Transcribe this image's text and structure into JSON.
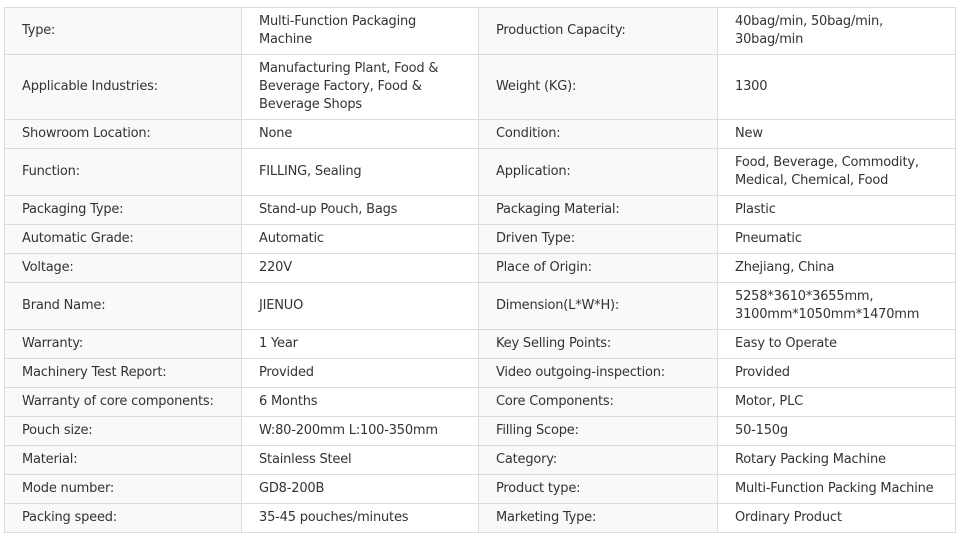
{
  "specs": {
    "rows": [
      {
        "k1": "Type:",
        "v1": "Multi-Function Packaging Machine",
        "k2": "Production Capacity:",
        "v2": "40bag/min, 50bag/min, 30bag/min"
      },
      {
        "k1": "Applicable Industries:",
        "v1": "Manufacturing Plant, Food & Beverage Factory, Food & Beverage Shops",
        "k2": "Weight (KG):",
        "v2": "1300"
      },
      {
        "k1": "Showroom Location:",
        "v1": "None",
        "k2": "Condition:",
        "v2": "New"
      },
      {
        "k1": "Function:",
        "v1": "FILLING, Sealing",
        "k2": "Application:",
        "v2": "Food, Beverage, Commodity, Medical, Chemical, Food"
      },
      {
        "k1": "Packaging Type:",
        "v1": "Stand-up Pouch, Bags",
        "k2": "Packaging Material:",
        "v2": "Plastic"
      },
      {
        "k1": "Automatic Grade:",
        "v1": "Automatic",
        "k2": "Driven Type:",
        "v2": "Pneumatic"
      },
      {
        "k1": "Voltage:",
        "v1": "220V",
        "k2": "Place of Origin:",
        "v2": "Zhejiang, China"
      },
      {
        "k1": "Brand Name:",
        "v1": "JIENUO",
        "k2": "Dimension(L*W*H):",
        "v2": "5258*3610*3655mm, 3100mm*1050mm*1470mm"
      },
      {
        "k1": "Warranty:",
        "v1": "1 Year",
        "k2": "Key Selling Points:",
        "v2": "Easy to Operate"
      },
      {
        "k1": "Machinery Test Report:",
        "v1": "Provided",
        "k2": "Video outgoing-inspection:",
        "v2": "Provided"
      },
      {
        "k1": "Warranty of core components:",
        "v1": "6 Months",
        "k2": "Core Components:",
        "v2": "Motor, PLC"
      },
      {
        "k1": "Pouch size:",
        "v1": "W:80-200mm L:100-350mm",
        "k2": "Filling Scope:",
        "v2": "50-150g"
      },
      {
        "k1": "Material:",
        "v1": "Stainless Steel",
        "k2": "Category:",
        "v2": "Rotary Packing Machine"
      },
      {
        "k1": "Mode number:",
        "v1": "GD8-200B",
        "k2": "Product type:",
        "v2": "Multi-Function Packing Machine"
      },
      {
        "k1": "Packing speed:",
        "v1": "35-45 pouches/minutes",
        "k2": "Marketing Type:",
        "v2": "Ordinary Product"
      }
    ]
  }
}
